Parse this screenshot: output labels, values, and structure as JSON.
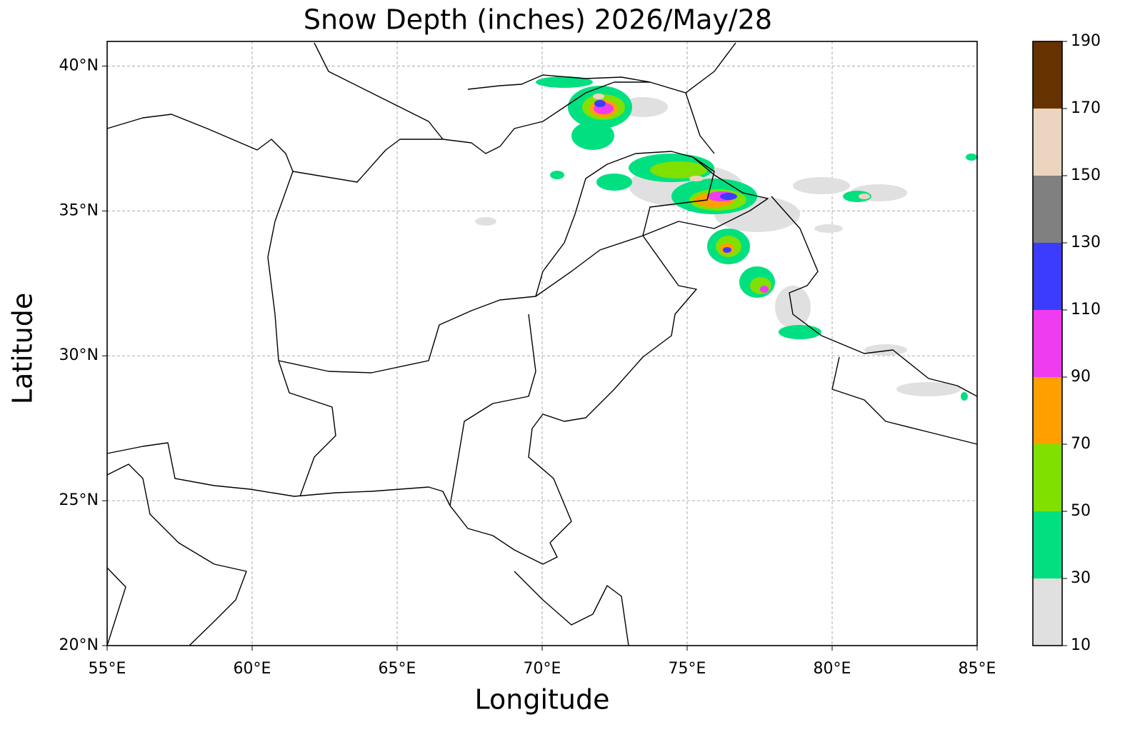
{
  "chart_data": {
    "type": "contourf",
    "title": "Snow Depth (inches) 2026/May/28",
    "xlabel": "Longitude",
    "ylabel": "Latitude",
    "xlim": [
      55,
      85
    ],
    "ylim": [
      20,
      40.85
    ],
    "xticks": [
      {
        "value": 55,
        "label": "55°E"
      },
      {
        "value": 60,
        "label": "60°E"
      },
      {
        "value": 65,
        "label": "65°E"
      },
      {
        "value": 70,
        "label": "70°E"
      },
      {
        "value": 75,
        "label": "75°E"
      },
      {
        "value": 80,
        "label": "80°E"
      },
      {
        "value": 85,
        "label": "85°E"
      }
    ],
    "yticks": [
      {
        "value": 20,
        "label": "20°N"
      },
      {
        "value": 25,
        "label": "25°N"
      },
      {
        "value": 30,
        "label": "30°N"
      },
      {
        "value": 35,
        "label": "35°N"
      },
      {
        "value": 40,
        "label": "40°N"
      }
    ],
    "grid": true,
    "colorbar": {
      "levels": [
        10,
        30,
        50,
        70,
        90,
        110,
        130,
        150,
        170,
        190
      ],
      "colors": [
        "#e0e0e0",
        "#00e080",
        "#80e000",
        "#ffa000",
        "#f03cf0",
        "#3c3cff",
        "#808080",
        "#ecd5c0",
        "#663300"
      ]
    }
  }
}
